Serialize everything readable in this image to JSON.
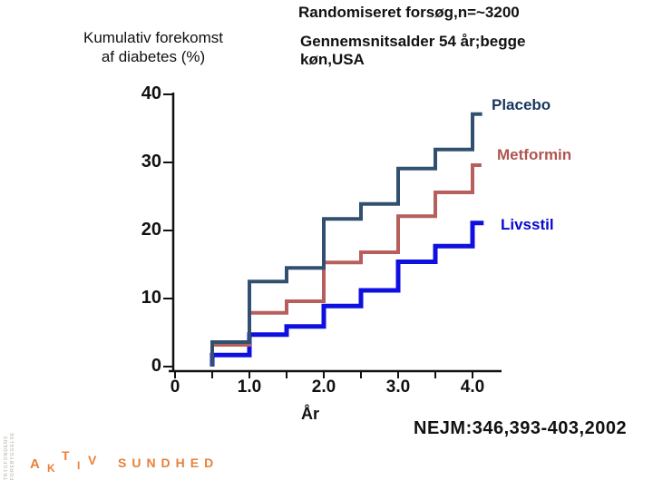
{
  "chart_data": {
    "type": "line",
    "subtype": "step",
    "title": "Randomiseret forsøg,n=~3200",
    "subtitle": "Gennemsnitsalder 54 år;begge køn,USA",
    "subtitle_lines": [
      "Gennemsnitsalder 54 år;begge",
      "køn,USA"
    ],
    "ylabel": "Kumulativ forekomst af diabetes (%)",
    "ylabel_lines": [
      "Kumulativ forekomst",
      "af diabetes (%)"
    ],
    "xlabel": "År",
    "xlim": [
      0,
      4.4
    ],
    "ylim": [
      0,
      40
    ],
    "grid": false,
    "x_tick_labels": [
      "0",
      "1.0",
      "2.0",
      "3.0",
      "4.0"
    ],
    "x_tick_years": [
      0,
      1,
      2,
      3,
      4
    ],
    "x_minor_tick_step": 0.5,
    "y_tick_labels": [
      "40",
      "30",
      "20",
      "10",
      "0"
    ],
    "y_tick_values": [
      0,
      10,
      20,
      30,
      40
    ],
    "legend_position": "right of line ends",
    "axis_color": "#111111",
    "series": [
      {
        "name": "Placebo",
        "color": "#31506F",
        "label_color": "#17365D",
        "line_width": 4,
        "start_year": 0.5,
        "end_year": 4.13,
        "points": [
          [
            0.5,
            3.6
          ],
          [
            1.0,
            12.5
          ],
          [
            1.5,
            14.5
          ],
          [
            2.0,
            21.7
          ],
          [
            2.5,
            23.9
          ],
          [
            3.0,
            29.1
          ],
          [
            3.5,
            31.9
          ],
          [
            4.0,
            37.1
          ]
        ]
      },
      {
        "name": "Metformin",
        "color": "#B65F5C",
        "label_color": "#B05550",
        "line_width": 4,
        "start_year": 0.5,
        "end_year": 4.12,
        "points": [
          [
            0.5,
            3.2
          ],
          [
            1.0,
            7.9
          ],
          [
            1.5,
            9.6
          ],
          [
            2.0,
            15.3
          ],
          [
            2.5,
            16.8
          ],
          [
            3.0,
            22.1
          ],
          [
            3.5,
            25.6
          ],
          [
            4.0,
            29.6
          ]
        ]
      },
      {
        "name": "Livsstil",
        "color": "#0F10E0",
        "label_color": "#0909CF",
        "line_width": 5,
        "start_year": 0.5,
        "end_year": 4.15,
        "points": [
          [
            0.5,
            1.7
          ],
          [
            1.0,
            4.7
          ],
          [
            1.5,
            5.9
          ],
          [
            2.0,
            8.9
          ],
          [
            2.5,
            11.2
          ],
          [
            3.0,
            15.4
          ],
          [
            3.5,
            17.7
          ],
          [
            4.0,
            21.1
          ]
        ]
      }
    ]
  },
  "citation": "NEJM:346,393-403,2002",
  "logo": {
    "word1_letters": [
      "A",
      "K",
      "T",
      "I",
      "V"
    ],
    "word2": "SUNDHED",
    "color": "#E8813B",
    "vertical_text_line1": "TRYGFONDENS",
    "vertical_text_line2": "FOREBYGGELSE"
  }
}
